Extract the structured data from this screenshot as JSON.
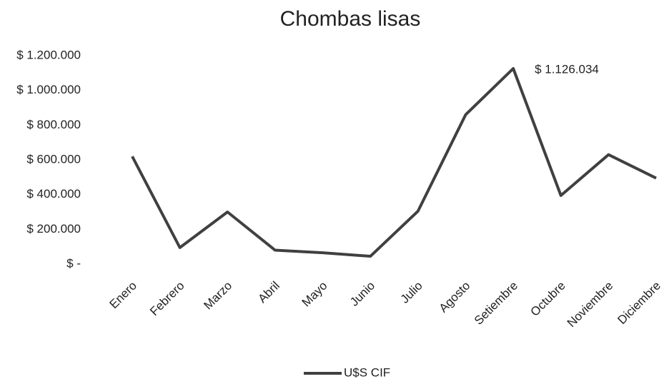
{
  "chart_data": {
    "type": "line",
    "title": "Chombas lisas",
    "categories": [
      "Enero",
      "Febrero",
      "Marzo",
      "Abril",
      "Mayo",
      "Junio",
      "Julio",
      "Agosto",
      "Setiembre",
      "Octubre",
      "Noviembre",
      "Diciembre"
    ],
    "series": [
      {
        "name": "U$S CIF",
        "color": "#404040",
        "values": [
          620000,
          95000,
          300000,
          80000,
          65000,
          45000,
          305000,
          860000,
          1126034,
          395000,
          630000,
          495000
        ],
        "value_labels": [
          null,
          null,
          null,
          null,
          null,
          null,
          null,
          null,
          "$ 1.126.034",
          null,
          null,
          null
        ]
      }
    ],
    "ylim": [
      0,
      1200000
    ],
    "yticks": [
      {
        "value": 0,
        "label": "$ -"
      },
      {
        "value": 200000,
        "label": "$ 200.000"
      },
      {
        "value": 400000,
        "label": "$ 400.000"
      },
      {
        "value": 600000,
        "label": "$ 600.000"
      },
      {
        "value": 800000,
        "label": "$ 800.000"
      },
      {
        "value": 1000000,
        "label": "$ 1.000.000"
      },
      {
        "value": 1200000,
        "label": "$ 1.200.000"
      }
    ],
    "grid": false,
    "legend": "bottom"
  }
}
